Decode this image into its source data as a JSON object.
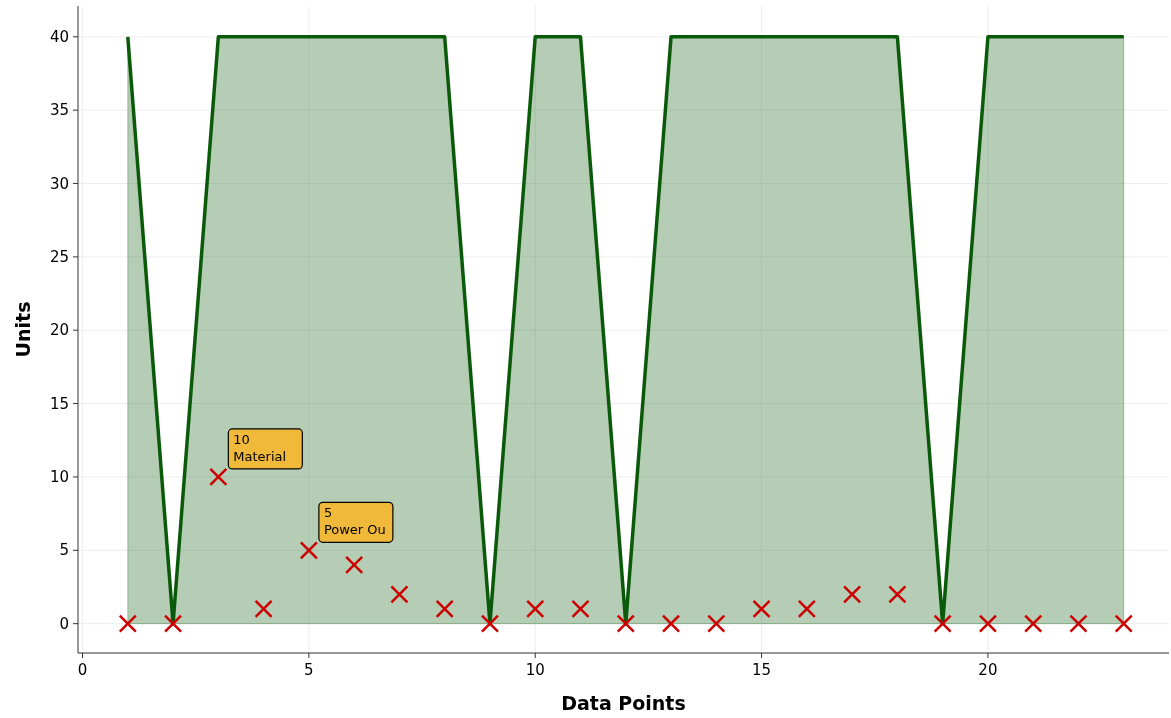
{
  "chart_data": {
    "type": "area",
    "xlabel": "Data Points",
    "ylabel": "Units",
    "x": [
      1,
      2,
      3,
      4,
      5,
      6,
      7,
      8,
      9,
      10,
      11,
      12,
      13,
      14,
      15,
      16,
      17,
      18,
      19,
      20,
      21,
      22,
      23
    ],
    "series": [
      {
        "color": "#0a5a0a",
        "values": [
          40,
          0,
          40,
          40,
          40,
          40,
          40,
          40,
          0,
          40,
          40,
          0,
          40,
          40,
          40,
          40,
          40,
          40,
          0,
          40,
          40,
          40,
          40
        ]
      },
      {
        "type": "scatter",
        "color": "#cc0000",
        "marker": "cross",
        "values": [
          0,
          0,
          10,
          1,
          5,
          4,
          2,
          1,
          0,
          1,
          1,
          0,
          0,
          0,
          1,
          1,
          2,
          2,
          0,
          0,
          0,
          0,
          0
        ]
      }
    ],
    "annotations": [
      {
        "text": "10\nMaterial",
        "x": 3,
        "y": 10
      },
      {
        "text": "5\nPower Ou",
        "x": 5,
        "y": 5
      }
    ],
    "xlim": [
      -0.1,
      24
    ],
    "ylim": [
      -2,
      42.1
    ],
    "xticks": [
      0,
      5,
      10,
      15,
      20
    ],
    "yticks": [
      0,
      5,
      10,
      15,
      20,
      25,
      30,
      35,
      40
    ],
    "grid": true
  }
}
